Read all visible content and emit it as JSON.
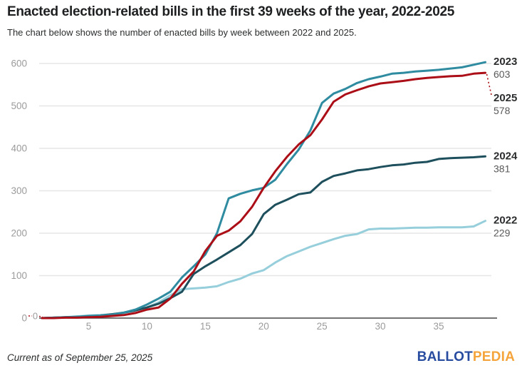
{
  "header": {
    "title": "Enacted election-related bills in the first 39 weeks of the year, 2022-2025",
    "subtitle": "The chart below shows the number of enacted bills by week between 2022 and 2025."
  },
  "footer": {
    "note": "Current as of September 25, 2025",
    "logo_part1": "BALLOT",
    "logo_part2": "PEDIA",
    "logo_color1": "#274b9f",
    "logo_color2": "#f4a43b"
  },
  "chart_data": {
    "type": "line",
    "title": "Enacted election-related bills in the first 39 weeks of the year, 2022-2025",
    "xlabel": "",
    "ylabel": "",
    "xlim": [
      1,
      39
    ],
    "ylim": [
      0,
      600
    ],
    "x_ticks": [
      5,
      10,
      15,
      20,
      25,
      30,
      35
    ],
    "y_ticks": [
      0,
      100,
      200,
      300,
      400,
      500,
      600
    ],
    "grid": true,
    "legend_position": "line-end-labels-right",
    "colors": {
      "grid": "#e6e6e6",
      "axis": "#454545",
      "tick_label": "#9b9b9b",
      "year_label": "#2b2d2e",
      "value_label": "#595959"
    },
    "series": [
      {
        "name": "2022",
        "color": "#96cfdb",
        "end_label": "229",
        "values": [
          0,
          1,
          2,
          4,
          6,
          7,
          9,
          12,
          18,
          25,
          37,
          54,
          68,
          70,
          72,
          75,
          85,
          93,
          105,
          113,
          131,
          146,
          157,
          168,
          177,
          186,
          194,
          198,
          209,
          211,
          211,
          212,
          213,
          213,
          214,
          214,
          214,
          216,
          229
        ]
      },
      {
        "name": "2024",
        "color": "#1d4f5c",
        "end_label": "381",
        "values": [
          0,
          1,
          2,
          3,
          4,
          6,
          9,
          13,
          18,
          25,
          34,
          47,
          62,
          104,
          122,
          138,
          155,
          172,
          198,
          245,
          267,
          279,
          292,
          296,
          321,
          335,
          341,
          348,
          351,
          356,
          360,
          362,
          366,
          368,
          375,
          377,
          378,
          379,
          381
        ]
      },
      {
        "name": "2023",
        "color": "#2f8ba0",
        "end_label": "603",
        "values": [
          0,
          1,
          2,
          3,
          5,
          6,
          8,
          13,
          20,
          32,
          46,
          62,
          96,
          122,
          150,
          200,
          282,
          293,
          301,
          307,
          326,
          363,
          397,
          442,
          507,
          529,
          540,
          554,
          563,
          569,
          576,
          578,
          581,
          583,
          585,
          588,
          591,
          597,
          603
        ]
      },
      {
        "name": "2025",
        "color": "#ab0e16",
        "end_label": "578",
        "start_label": "0",
        "leader": "dotted",
        "values": [
          0,
          0,
          1,
          1,
          2,
          3,
          5,
          7,
          12,
          20,
          25,
          46,
          81,
          110,
          158,
          194,
          206,
          228,
          262,
          307,
          346,
          380,
          409,
          431,
          468,
          510,
          527,
          537,
          546,
          553,
          556,
          559,
          563,
          566,
          568,
          570,
          571,
          576,
          578
        ]
      }
    ]
  }
}
